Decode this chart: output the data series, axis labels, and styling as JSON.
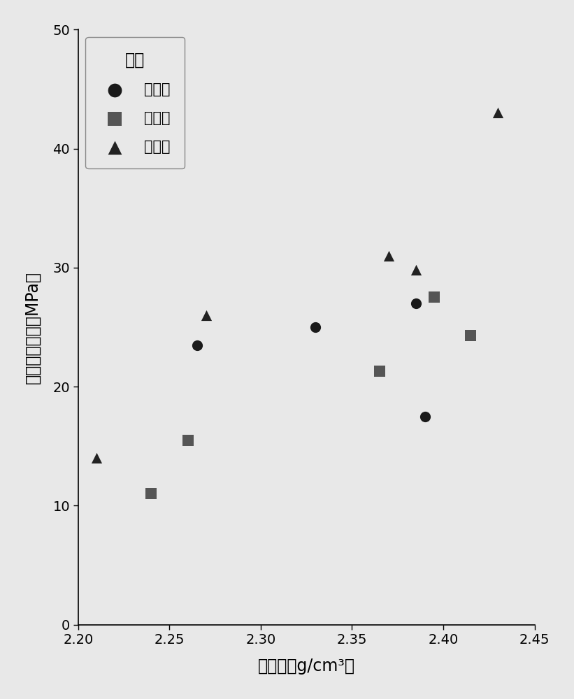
{
  "title": "",
  "xlabel": "干密度（g/cm³）",
  "ylabel": "单轴抗压强度（MPa）",
  "xlim": [
    2.2,
    2.45
  ],
  "ylim": [
    0,
    50
  ],
  "xticks": [
    2.2,
    2.25,
    2.3,
    2.35,
    2.4,
    2.45
  ],
  "yticks": [
    0,
    10,
    20,
    30,
    40,
    50
  ],
  "legend_title": "馒源",
  "series": [
    {
      "label": "氯化馒",
      "marker": "o",
      "color": "#1a1a1a",
      "x": [
        2.265,
        2.33,
        2.385,
        2.39
      ],
      "y": [
        23.5,
        25.0,
        27.0,
        17.5
      ]
    },
    {
      "label": "硒酸馒",
      "marker": "s",
      "color": "#555555",
      "x": [
        2.24,
        2.26,
        2.365,
        2.395,
        2.415
      ],
      "y": [
        11.0,
        15.5,
        21.3,
        27.5,
        24.3
      ]
    },
    {
      "label": "乙酸馒",
      "marker": "^",
      "color": "#222222",
      "x": [
        2.21,
        2.27,
        2.37,
        2.385,
        2.43
      ],
      "y": [
        14.0,
        26.0,
        31.0,
        29.8,
        43.0
      ]
    }
  ],
  "marker_size": 120,
  "background_color": "#e8e8e8",
  "plot_bg_color": "#e8e8e8",
  "font_size_label": 17,
  "font_size_tick": 14,
  "font_size_legend_title": 17,
  "font_size_legend": 15
}
